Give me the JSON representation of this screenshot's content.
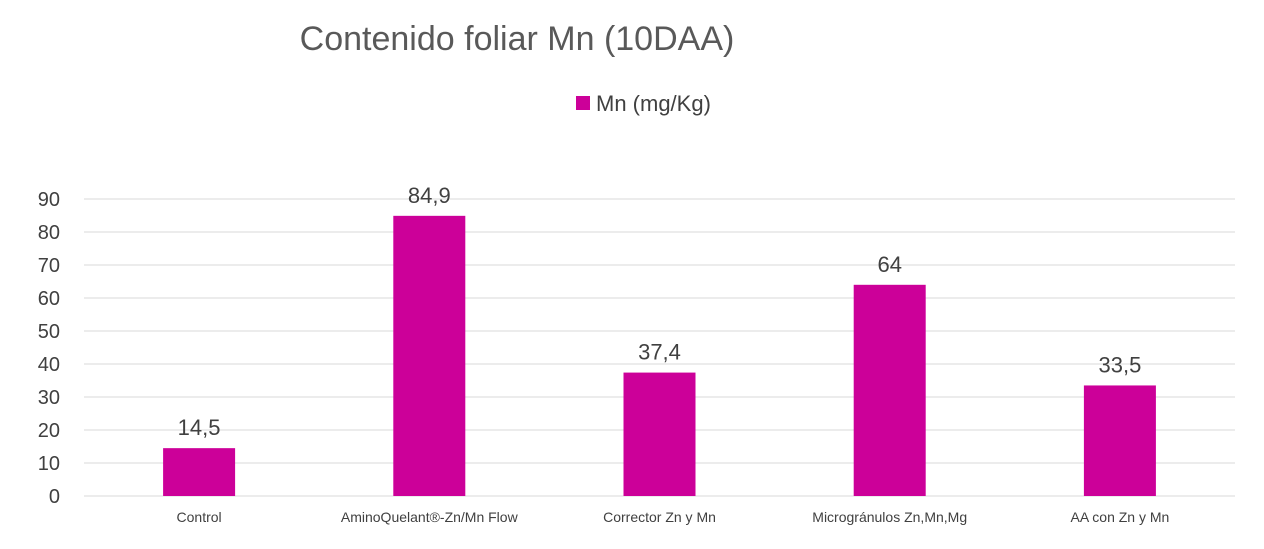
{
  "chart_data": {
    "type": "bar",
    "title": "Contenido foliar Mn (10DAA)",
    "xlabel": "",
    "ylabel": "",
    "categories": [
      "Control",
      "AminoQuelant®-Zn/Mn Flow",
      "Corrector Zn y Mn",
      "Microgránulos Zn,Mn,Mg",
      "AA con Zn y Mn"
    ],
    "series": [
      {
        "name": "Mn (mg/Kg)",
        "values": [
          14.5,
          84.9,
          37.4,
          64,
          33.5
        ],
        "labels": [
          "14,5",
          "84,9",
          "37,4",
          "64",
          "33,5"
        ]
      }
    ],
    "ylim": [
      0,
      90
    ],
    "yticks": [
      0,
      10,
      20,
      30,
      40,
      50,
      60,
      70,
      80,
      90
    ],
    "grid": true,
    "legend": "top-center",
    "colors": {
      "bar": "#cc0099",
      "grid": "#d9d9d9",
      "text": "#404040"
    }
  }
}
